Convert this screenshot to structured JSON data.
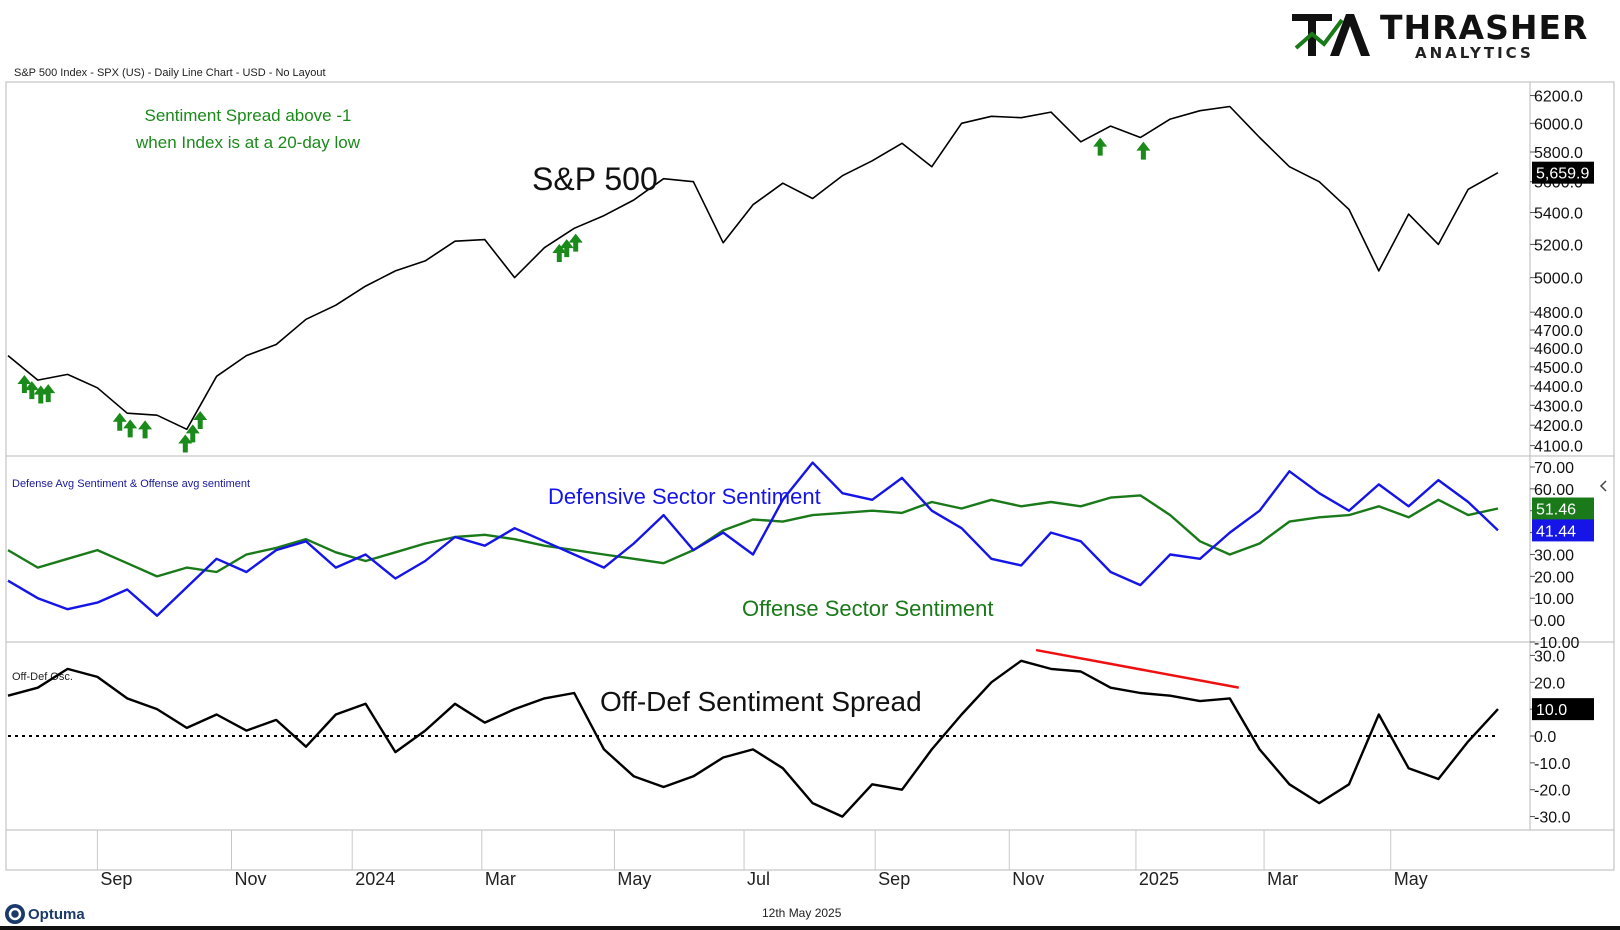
{
  "header": {
    "chart_info": "S&P 500 Index - SPX (US) - Daily Line Chart - USD - No Layout"
  },
  "logo": {
    "brand": "THRASHER",
    "sub": "ANALYTICS",
    "mark_color": "#1a7a1a"
  },
  "footer": {
    "brand": "Optuma",
    "date": "12th May 2025"
  },
  "chart_data": [
    {
      "id": "spx",
      "type": "line",
      "title": "S&P 500",
      "yscale": "log",
      "ylim": [
        4050,
        6300
      ],
      "yticks": [
        4100,
        4200,
        4300,
        4400,
        4500,
        4600,
        4700,
        4800,
        5000,
        5200,
        5400,
        5600,
        5800,
        6000,
        6200
      ],
      "ytick_labels": [
        "4100.0",
        "4200.0",
        "4300.0",
        "4400.0",
        "4500.0",
        "4600.0",
        "4700.0",
        "4800.0",
        "5000.0",
        "5200.0",
        "5400.0",
        "5600.0",
        "5800.0",
        "6000.0",
        "6200.0"
      ],
      "last_value_label": "5,659.9",
      "annotation": [
        "Sentiment Spread above -1",
        "when Index is at a 20-day low"
      ],
      "annotation_color": "#1a8a1a",
      "line_color": "#000000",
      "x": [
        0,
        0.02,
        0.04,
        0.06,
        0.08,
        0.1,
        0.12,
        0.14,
        0.16,
        0.18,
        0.2,
        0.22,
        0.24,
        0.26,
        0.28,
        0.3,
        0.32,
        0.34,
        0.36,
        0.38,
        0.4,
        0.42,
        0.44,
        0.46,
        0.48,
        0.5,
        0.52,
        0.54,
        0.56,
        0.58,
        0.6,
        0.62,
        0.64,
        0.66,
        0.68,
        0.7,
        0.72,
        0.74,
        0.76,
        0.78,
        0.8,
        0.82,
        0.84,
        0.86,
        0.88,
        0.9,
        0.92,
        0.94,
        0.96,
        0.98,
        1.0
      ],
      "values": [
        4560,
        4430,
        4460,
        4390,
        4260,
        4250,
        4180,
        4450,
        4560,
        4620,
        4760,
        4840,
        4950,
        5040,
        5100,
        5220,
        5230,
        5000,
        5180,
        5300,
        5380,
        5480,
        5620,
        5600,
        5210,
        5450,
        5590,
        5490,
        5640,
        5740,
        5860,
        5700,
        6000,
        6050,
        6040,
        6080,
        5870,
        5980,
        5900,
        6030,
        6090,
        6120,
        5900,
        5700,
        5600,
        5420,
        5040,
        5390,
        5200,
        5550,
        5660
      ],
      "signal_arrows_x": [
        0.011,
        0.016,
        0.022,
        0.027,
        0.075,
        0.082,
        0.092,
        0.119,
        0.124,
        0.129,
        0.37,
        0.375,
        0.381,
        0.733,
        0.762
      ],
      "signal_arrow_color": "#1a8a1a"
    },
    {
      "id": "sentiment",
      "type": "line",
      "title": "Defense Avg Sentiment & Offense avg sentiment",
      "ylim": [
        -10,
        75
      ],
      "yticks": [
        -10,
        0,
        10,
        20,
        30,
        40,
        50,
        60,
        70
      ],
      "ytick_labels": [
        "-10.00",
        "0.00",
        "10.00",
        "20.00",
        "30.00",
        "40.00",
        "50.00",
        "60.00",
        "70.00"
      ],
      "series": [
        {
          "name": "Defensive Sector Sentiment",
          "color": "#1515e8",
          "last_label": "41.44",
          "values": [
            18,
            10,
            5,
            8,
            14,
            2,
            15,
            28,
            22,
            32,
            36,
            24,
            30,
            19,
            27,
            38,
            34,
            42,
            36,
            30,
            24,
            35,
            48,
            32,
            40,
            30,
            55,
            72,
            58,
            55,
            65,
            50,
            42,
            28,
            25,
            40,
            36,
            22,
            16,
            30,
            28,
            40,
            50,
            68,
            58,
            50,
            62,
            52,
            64,
            54,
            41
          ]
        },
        {
          "name": "Offense Sector Sentiment",
          "color": "#1a7a1a",
          "last_label": "51.46",
          "values": [
            32,
            24,
            28,
            32,
            26,
            20,
            24,
            22,
            30,
            33,
            37,
            31,
            27,
            31,
            35,
            38,
            39,
            37,
            34,
            32,
            30,
            28,
            26,
            32,
            41,
            46,
            45,
            48,
            49,
            50,
            49,
            54,
            51,
            55,
            52,
            54,
            52,
            56,
            57,
            48,
            36,
            30,
            35,
            45,
            47,
            48,
            52,
            47,
            55,
            48,
            51
          ]
        }
      ]
    },
    {
      "id": "spread",
      "type": "line",
      "title": "Off-Def Osc.",
      "heading": "Off-Def Sentiment Spread",
      "ylim": [
        -35,
        35
      ],
      "yticks": [
        -30,
        -20,
        -10,
        0,
        10,
        20,
        30
      ],
      "ytick_labels": [
        "-30.0",
        "-20.0",
        "-10.0",
        "0.0",
        "10.0",
        "20.0",
        "30.0"
      ],
      "last_value_label": "10.0",
      "reference_line": 0,
      "line_color": "#000000",
      "values": [
        15,
        18,
        25,
        22,
        14,
        10,
        3,
        8,
        2,
        6,
        -4,
        8,
        12,
        -6,
        2,
        12,
        5,
        10,
        14,
        16,
        -5,
        -15,
        -19,
        -15,
        -8,
        -5,
        -12,
        -25,
        -30,
        -18,
        -20,
        -5,
        8,
        20,
        28,
        25,
        24,
        18,
        16,
        15,
        13,
        14,
        -5,
        -18,
        -25,
        -18,
        8,
        -12,
        -16,
        -2,
        10
      ],
      "trendline": {
        "from_x": 0.69,
        "from_y": 32,
        "to_x": 0.826,
        "to_y": 18,
        "color": "#ee1111"
      }
    }
  ],
  "x_axis": {
    "ticks": [
      {
        "label": "Sep",
        "x": 0.06
      },
      {
        "label": "Nov",
        "x": 0.15
      },
      {
        "label": "2024",
        "x": 0.231
      },
      {
        "label": "Mar",
        "x": 0.318
      },
      {
        "label": "May",
        "x": 0.407
      },
      {
        "label": "Jul",
        "x": 0.494
      },
      {
        "label": "Sep",
        "x": 0.582
      },
      {
        "label": "Nov",
        "x": 0.672
      },
      {
        "label": "2025",
        "x": 0.757
      },
      {
        "label": "Mar",
        "x": 0.843
      },
      {
        "label": "May",
        "x": 0.928
      }
    ]
  }
}
